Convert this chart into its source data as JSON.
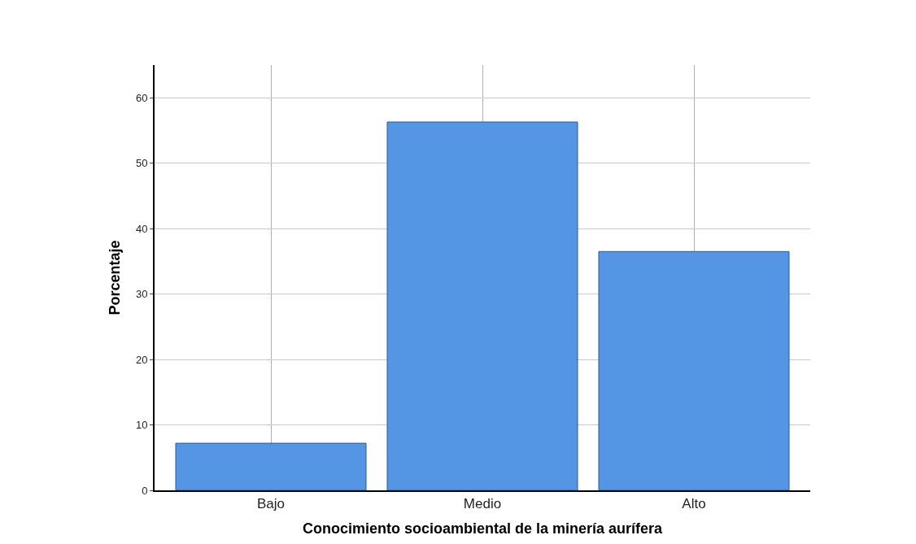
{
  "chart_data": {
    "type": "bar",
    "xlabel": "Conocimiento socioambiental de la minería aurífera",
    "ylabel": "Porcentaje",
    "categories": [
      "Bajo",
      "Medio",
      "Alto"
    ],
    "values": [
      7.2,
      56.3,
      36.5
    ],
    "color": "#5596e4",
    "ylim": [
      0,
      65
    ],
    "yticks": [
      0,
      10,
      20,
      30,
      40,
      50,
      60
    ],
    "grid": true
  }
}
